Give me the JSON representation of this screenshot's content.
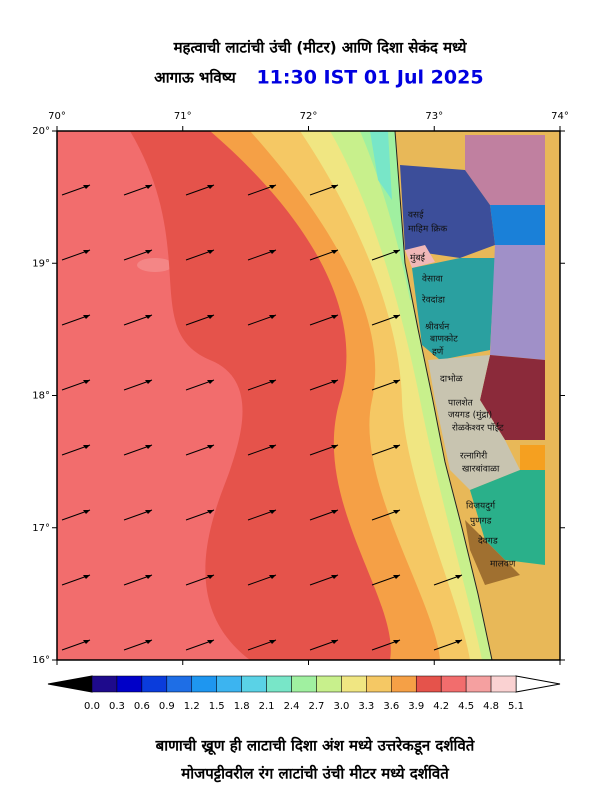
{
  "header": {
    "title": "महत्वाची लाटांची उंची (मीटर) आणि दिशा सेकंद मध्ये",
    "subtitle": "आगाऊ भविष्य",
    "time": "11:30 IST 01 Jul 2025"
  },
  "map": {
    "lon_ticks": [
      "70°",
      "71°",
      "72°",
      "73°",
      "74°"
    ],
    "lat_ticks": [
      "20°",
      "19°",
      "18°",
      "17°",
      "16°"
    ],
    "places": [
      "वसई",
      "माहिम क्रिक",
      "मुंबई",
      "वेसावा",
      "रेवदांडा",
      "श्रीवर्धन",
      "बाणकोट",
      "हर्णे",
      "दाभोळ",
      "पालशेत",
      "जयगड (मुंद्रा)",
      "रोळकेश्वर पॉईंट",
      "रत्नागिरी",
      "खारबांवाळा",
      "विजयदुर्ग",
      "पुणगड",
      "देवगड",
      "मालवण"
    ]
  },
  "colorbar": {
    "labels": [
      "0.0",
      "0.3",
      "0.6",
      "0.9",
      "1.2",
      "1.5",
      "1.8",
      "2.1",
      "2.4",
      "2.7",
      "3.0",
      "3.3",
      "3.6",
      "3.9",
      "4.2",
      "4.5",
      "4.8",
      "5.1"
    ],
    "colors": [
      "#1e0a8c",
      "#0000c8",
      "#0a3cdc",
      "#1e6ee6",
      "#1e96f0",
      "#3cb4f0",
      "#5ad2e6",
      "#78e6c8",
      "#a0f0a0",
      "#c8f08c",
      "#f0e682",
      "#f5c864",
      "#f5a046",
      "#e5534b",
      "#f26d6d",
      "#f5a0a0",
      "#fad2d2"
    ]
  },
  "footer": {
    "line1": "बाणाची ख्रूण ही लाटाची दिशा अंश मध्ये उत्तरेकडून दर्शविते",
    "line2": "मोजपट्टीवरील रंग लाटांची उंची मीटर मध्ये दर्शविते"
  }
}
